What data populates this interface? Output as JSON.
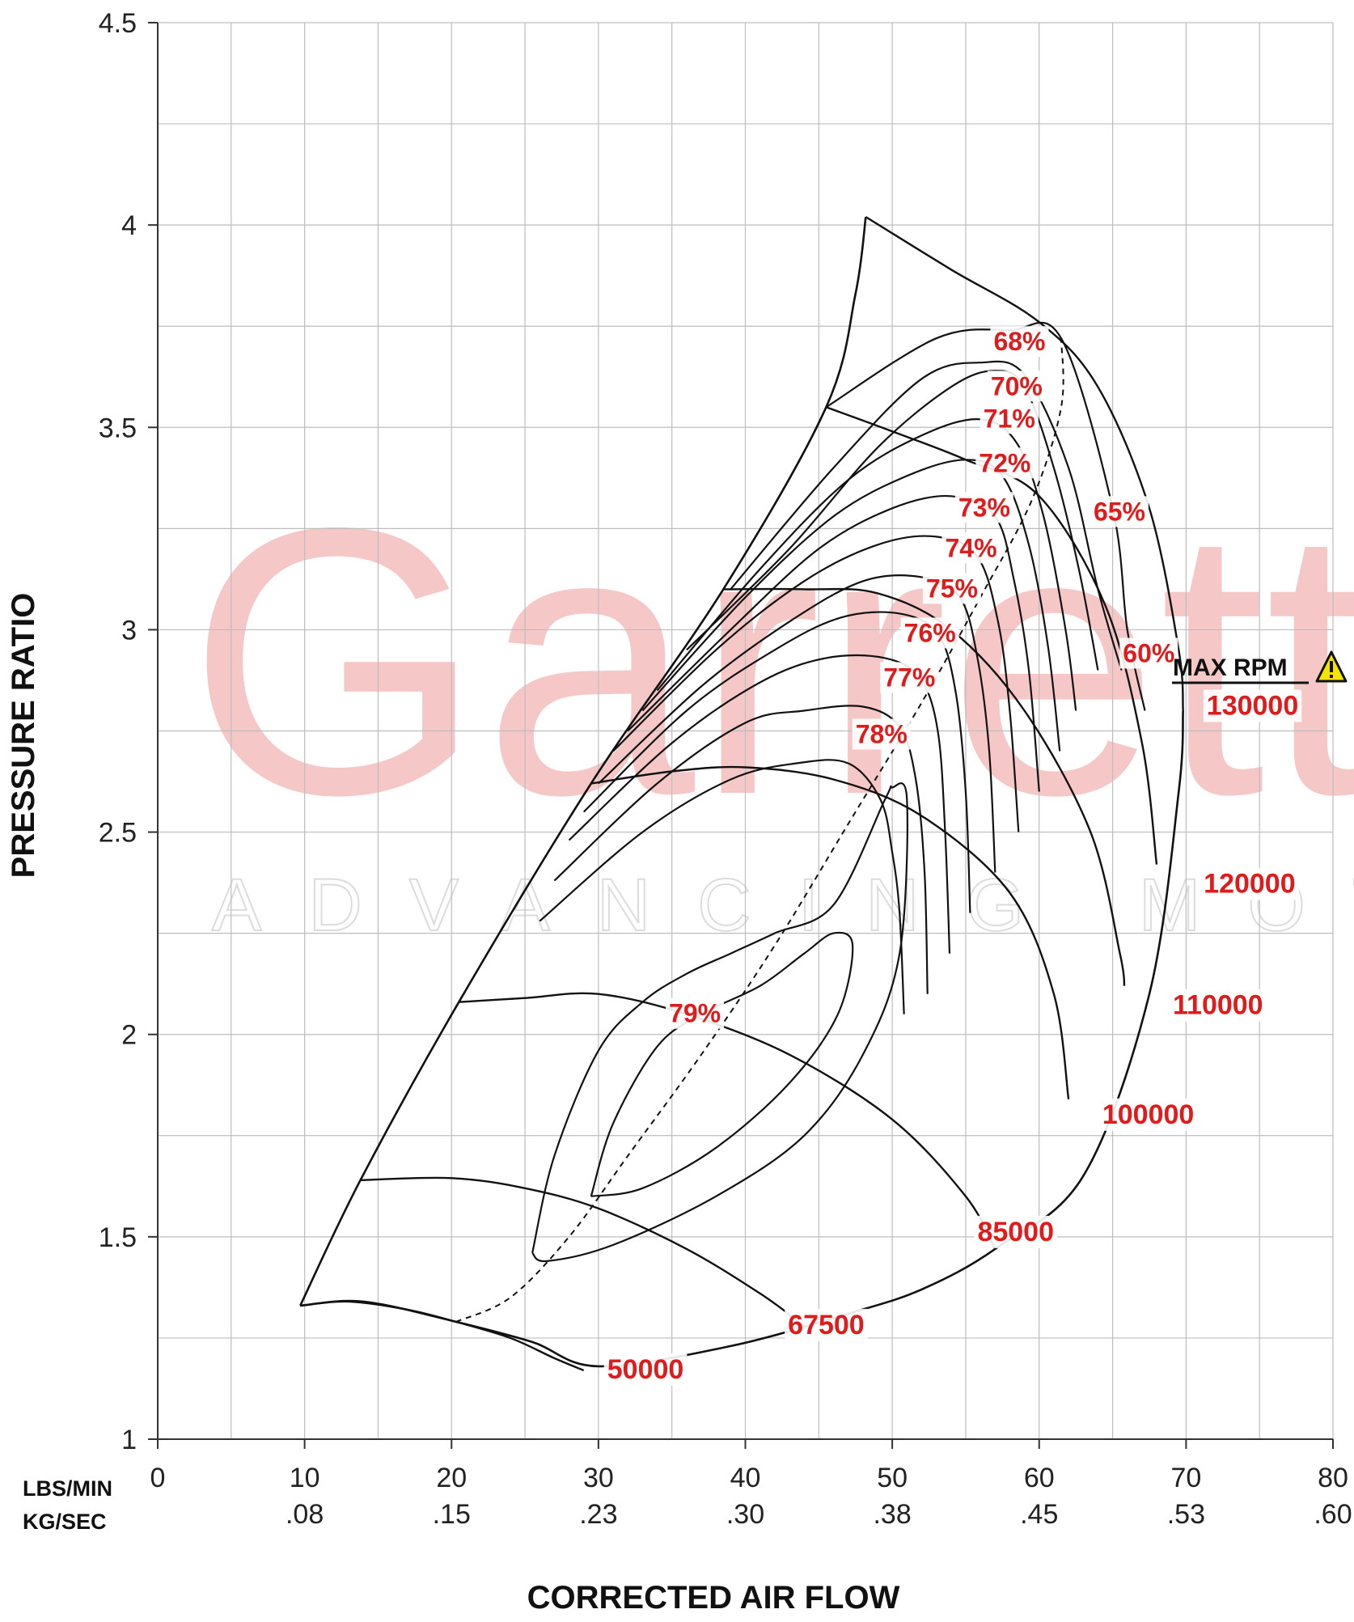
{
  "chart_data": {
    "type": "line",
    "chart_kind": "compressor map",
    "xlabel": "CORRECTED AIR FLOW",
    "ylabel": "PRESSURE RATIO",
    "x_unit_primary": "LBS/MIN",
    "x_unit_secondary": "KG/SEC",
    "xlim": [
      0,
      80
    ],
    "ylim": [
      1,
      4.5
    ],
    "x_ticks": [
      0,
      10,
      20,
      30,
      40,
      50,
      60,
      70,
      80
    ],
    "x_ticks_secondary": [
      "",
      ".08",
      ".15",
      ".23",
      ".30",
      ".38",
      ".45",
      ".53",
      ".60"
    ],
    "y_ticks": [
      "1",
      "1.5",
      "2",
      "2.5",
      "3",
      "3.5",
      "4",
      "4.5"
    ],
    "grid": true,
    "watermark": {
      "brand": "Garrett",
      "tagline": "ADVANCING MOTION"
    },
    "max_rpm_label": "MAX RPM",
    "colors": {
      "lines": "#111111",
      "labels": "#e01b1b",
      "watermark": "#f6c7c7",
      "warning": "#f5e400"
    },
    "surge_line": [
      [
        9.7,
        1.33
      ],
      [
        13.8,
        1.64
      ],
      [
        20.5,
        2.08
      ],
      [
        29.5,
        2.62
      ],
      [
        38.5,
        3.1
      ],
      [
        45.5,
        3.55
      ],
      [
        47.5,
        3.83
      ],
      [
        48.2,
        4.02
      ]
    ],
    "choke_line": [
      [
        9.7,
        1.33
      ],
      [
        14,
        1.34
      ],
      [
        20.3,
        1.29
      ],
      [
        25.5,
        1.24
      ],
      [
        30,
        1.18
      ],
      [
        39,
        1.23
      ],
      [
        47,
        1.31
      ],
      [
        52,
        1.37
      ],
      [
        57,
        1.47
      ],
      [
        63,
        1.65
      ],
      [
        67.5,
        2.1
      ],
      [
        69.5,
        2.6
      ],
      [
        69.8,
        2.8
      ]
    ],
    "speed_lines": [
      {
        "rpm": "50000",
        "points": [
          [
            9.7,
            1.33
          ],
          [
            13,
            1.34
          ],
          [
            17,
            1.32
          ],
          [
            20.3,
            1.29
          ],
          [
            24,
            1.25
          ],
          [
            27,
            1.2
          ],
          [
            29,
            1.17
          ]
        ]
      },
      {
        "rpm": "67500",
        "points": [
          [
            13.8,
            1.64
          ],
          [
            20,
            1.645
          ],
          [
            25,
            1.62
          ],
          [
            30,
            1.57
          ],
          [
            36,
            1.47
          ],
          [
            41,
            1.36
          ],
          [
            44,
            1.28
          ]
        ]
      },
      {
        "rpm": "85000",
        "points": [
          [
            20.5,
            2.08
          ],
          [
            25,
            2.09
          ],
          [
            30,
            2.1
          ],
          [
            36,
            2.05
          ],
          [
            43,
            1.95
          ],
          [
            50,
            1.79
          ],
          [
            55,
            1.6
          ],
          [
            57,
            1.47
          ]
        ]
      },
      {
        "rpm": "100000",
        "points": [
          [
            29.5,
            2.62
          ],
          [
            35,
            2.65
          ],
          [
            40,
            2.66
          ],
          [
            46,
            2.63
          ],
          [
            52,
            2.54
          ],
          [
            58,
            2.35
          ],
          [
            61,
            2.1
          ],
          [
            62,
            1.84
          ]
        ]
      },
      {
        "rpm": "110000",
        "points": [
          [
            38.5,
            3.1
          ],
          [
            44,
            3.1
          ],
          [
            49,
            3.09
          ],
          [
            54,
            3.0
          ],
          [
            59,
            2.8
          ],
          [
            63.5,
            2.5
          ],
          [
            65.5,
            2.2
          ],
          [
            65.8,
            2.12
          ]
        ]
      },
      {
        "rpm": "120000",
        "points": [
          [
            45.5,
            3.55
          ],
          [
            50,
            3.49
          ],
          [
            55,
            3.42
          ],
          [
            60,
            3.33
          ],
          [
            64.5,
            3.06
          ],
          [
            67,
            2.72
          ],
          [
            68,
            2.42
          ]
        ]
      },
      {
        "rpm": "130000",
        "points": [
          [
            48.2,
            4.02
          ],
          [
            54,
            3.89
          ],
          [
            60,
            3.76
          ],
          [
            64,
            3.6
          ],
          [
            67.5,
            3.3
          ],
          [
            69.5,
            2.95
          ],
          [
            69.8,
            2.8
          ]
        ]
      }
    ],
    "efficiency_contours": [
      {
        "label": "60%",
        "points": [
          [
            45.5,
            3.55
          ],
          [
            53,
            3.72
          ],
          [
            58,
            3.74
          ],
          [
            61.5,
            3.72
          ],
          [
            65,
            3.3
          ],
          [
            66,
            3.0
          ],
          [
            67.2,
            2.8
          ]
        ]
      },
      {
        "label": "65%",
        "points": [
          [
            39,
            3.1
          ],
          [
            46,
            3.4
          ],
          [
            52,
            3.62
          ],
          [
            56,
            3.66
          ],
          [
            59,
            3.63
          ],
          [
            62,
            3.4
          ],
          [
            64,
            3.1
          ],
          [
            65.6,
            2.9
          ]
        ]
      },
      {
        "label": "68%",
        "points": [
          [
            36,
            2.95
          ],
          [
            43,
            3.2
          ],
          [
            49,
            3.45
          ],
          [
            54,
            3.6
          ],
          [
            57,
            3.64
          ],
          [
            59,
            3.6
          ],
          [
            61,
            3.4
          ],
          [
            62.7,
            3.15
          ],
          [
            64,
            2.9
          ]
        ]
      },
      {
        "label": "70%",
        "points": [
          [
            34,
            2.85
          ],
          [
            41,
            3.15
          ],
          [
            47,
            3.37
          ],
          [
            52,
            3.48
          ],
          [
            56,
            3.52
          ],
          [
            58.5,
            3.46
          ],
          [
            60.3,
            3.28
          ],
          [
            61.8,
            3.0
          ],
          [
            62.5,
            2.8
          ]
        ]
      },
      {
        "label": "71%",
        "points": [
          [
            33,
            2.8
          ],
          [
            40,
            3.08
          ],
          [
            46,
            3.28
          ],
          [
            51,
            3.38
          ],
          [
            55,
            3.42
          ],
          [
            57.5,
            3.38
          ],
          [
            59.3,
            3.21
          ],
          [
            60.6,
            2.96
          ],
          [
            61.4,
            2.7
          ]
        ]
      },
      {
        "label": "72%",
        "points": [
          [
            32,
            2.75
          ],
          [
            39,
            3.0
          ],
          [
            45,
            3.2
          ],
          [
            50,
            3.3
          ],
          [
            54,
            3.33
          ],
          [
            57,
            3.28
          ],
          [
            58.3,
            3.12
          ],
          [
            59.3,
            2.9
          ],
          [
            60,
            2.6
          ]
        ]
      },
      {
        "label": "73%",
        "points": [
          [
            31,
            2.7
          ],
          [
            38,
            2.95
          ],
          [
            44,
            3.12
          ],
          [
            49,
            3.21
          ],
          [
            53,
            3.23
          ],
          [
            55.8,
            3.18
          ],
          [
            57.2,
            3.02
          ],
          [
            58,
            2.8
          ],
          [
            58.6,
            2.5
          ]
        ]
      },
      {
        "label": "74%",
        "points": [
          [
            30,
            2.62
          ],
          [
            37,
            2.86
          ],
          [
            43,
            3.02
          ],
          [
            48,
            3.12
          ],
          [
            52,
            3.13
          ],
          [
            54.6,
            3.08
          ],
          [
            55.8,
            2.93
          ],
          [
            56.6,
            2.7
          ],
          [
            57,
            2.4
          ]
        ]
      },
      {
        "label": "75%",
        "points": [
          [
            29,
            2.55
          ],
          [
            36,
            2.8
          ],
          [
            42,
            2.95
          ],
          [
            46.5,
            3.03
          ],
          [
            50.5,
            3.04
          ],
          [
            53.1,
            2.99
          ],
          [
            54.3,
            2.85
          ],
          [
            55,
            2.6
          ],
          [
            55.3,
            2.3
          ]
        ]
      },
      {
        "label": "76%",
        "points": [
          [
            28,
            2.48
          ],
          [
            35,
            2.72
          ],
          [
            41,
            2.87
          ],
          [
            45.5,
            2.93
          ],
          [
            49.5,
            2.93
          ],
          [
            51.9,
            2.88
          ],
          [
            53.1,
            2.75
          ],
          [
            53.6,
            2.5
          ],
          [
            53.9,
            2.2
          ]
        ]
      },
      {
        "label": "77%",
        "points": [
          [
            27,
            2.38
          ],
          [
            34,
            2.62
          ],
          [
            40,
            2.77
          ],
          [
            44,
            2.8
          ],
          [
            48,
            2.81
          ],
          [
            50.5,
            2.76
          ],
          [
            51.6,
            2.63
          ],
          [
            52.2,
            2.4
          ],
          [
            52.4,
            2.1
          ]
        ]
      },
      {
        "label": "78%",
        "points": [
          [
            26,
            2.28
          ],
          [
            33,
            2.5
          ],
          [
            39,
            2.63
          ],
          [
            43.5,
            2.67
          ],
          [
            47,
            2.67
          ],
          [
            49.2,
            2.58
          ],
          [
            50,
            2.45
          ],
          [
            50.5,
            2.3
          ],
          [
            50.8,
            2.05
          ]
        ]
      },
      {
        "label": "79%",
        "points": [
          [
            25.5,
            1.46
          ],
          [
            27,
            1.7
          ],
          [
            30,
            1.96
          ],
          [
            33,
            2.08
          ],
          [
            36,
            2.15
          ],
          [
            39,
            2.2
          ],
          [
            42,
            2.25
          ],
          [
            46,
            2.32
          ],
          [
            49.5,
            2.58
          ],
          [
            50,
            2.61
          ],
          [
            51,
            2.58
          ],
          [
            50.5,
            2.2
          ],
          [
            48,
            1.95
          ],
          [
            44,
            1.75
          ],
          [
            38,
            1.6
          ],
          [
            31,
            1.48
          ],
          [
            26.5,
            1.44
          ],
          [
            25.5,
            1.46
          ]
        ]
      },
      {
        "label": "",
        "points": [
          [
            29.5,
            1.6
          ],
          [
            31,
            1.78
          ],
          [
            34,
            1.97
          ],
          [
            37,
            2.05
          ],
          [
            41,
            2.12
          ],
          [
            44,
            2.2
          ],
          [
            46,
            2.25
          ],
          [
            47.3,
            2.22
          ],
          [
            46.3,
            2.05
          ],
          [
            43,
            1.88
          ],
          [
            38,
            1.72
          ],
          [
            33,
            1.62
          ],
          [
            29.5,
            1.6
          ]
        ]
      }
    ],
    "max_flow_line": [
      [
        20.3,
        1.29
      ],
      [
        24,
        1.35
      ],
      [
        28,
        1.5
      ],
      [
        32,
        1.7
      ],
      [
        37,
        1.95
      ],
      [
        42,
        2.22
      ],
      [
        47,
        2.52
      ],
      [
        52,
        2.82
      ],
      [
        56,
        3.08
      ],
      [
        59.5,
        3.32
      ],
      [
        61.5,
        3.55
      ],
      [
        61.5,
        3.72
      ]
    ],
    "efficiency_label_anchors": [
      {
        "label": "68%",
        "x": 56.9,
        "y": 3.69
      },
      {
        "label": "70%",
        "x": 56.7,
        "y": 3.58
      },
      {
        "label": "71%",
        "x": 56.2,
        "y": 3.5
      },
      {
        "label": "72%",
        "x": 55.9,
        "y": 3.39
      },
      {
        "label": "73%",
        "x": 54.5,
        "y": 3.28
      },
      {
        "label": "74%",
        "x": 53.6,
        "y": 3.18
      },
      {
        "label": "75%",
        "x": 52.3,
        "y": 3.08
      },
      {
        "label": "76%",
        "x": 50.8,
        "y": 2.97
      },
      {
        "label": "77%",
        "x": 49.4,
        "y": 2.86
      },
      {
        "label": "78%",
        "x": 47.5,
        "y": 2.72
      },
      {
        "label": "79%",
        "x": 34.8,
        "y": 2.03
      },
      {
        "label": "65%",
        "x": 63.7,
        "y": 3.27
      },
      {
        "label": "60%",
        "x": 65.7,
        "y": 2.92
      }
    ],
    "speed_label_anchors": [
      {
        "label": "130000",
        "x": 71.4,
        "y": 2.79
      },
      {
        "label": "120000",
        "x": 71.2,
        "y": 2.35
      },
      {
        "label": "110000",
        "x": 69.1,
        "y": 2.05
      },
      {
        "label": "100000",
        "x": 64.3,
        "y": 1.78
      },
      {
        "label": "85000",
        "x": 55.8,
        "y": 1.49
      },
      {
        "label": "67500",
        "x": 42.9,
        "y": 1.26
      },
      {
        "label": "50000",
        "x": 30.6,
        "y": 1.15
      }
    ]
  }
}
